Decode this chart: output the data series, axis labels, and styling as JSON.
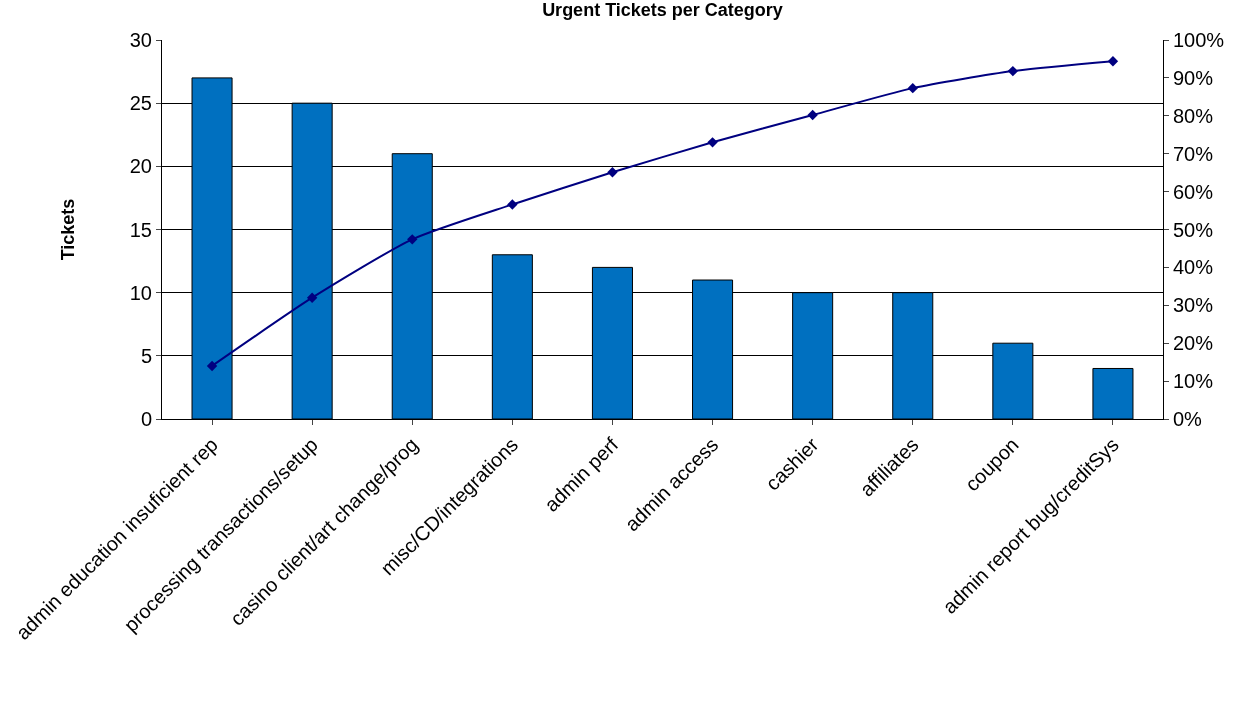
{
  "chart_data": {
    "type": "bar",
    "title": "Urgent Tickets per Category",
    "ylabel": "Tickets",
    "categories": [
      "admin education insuficient rep",
      "processing transactions/setup",
      "casino client/art change/prog",
      "misc/CD/integrations",
      "admin perf",
      "admin access",
      "cashier",
      "affiliates",
      "coupon",
      "admin report bug/creditSys"
    ],
    "series": [
      {
        "color": "#0070c0",
        "values": [
          27,
          25,
          21,
          13,
          12,
          11,
          10,
          10,
          6,
          4
        ]
      },
      {
        "type": "line",
        "axis": "y2",
        "color": "#000080",
        "marker": "diamond",
        "line_style": "solid",
        "values": [
          14.0,
          32.0,
          47.4,
          56.6,
          65.1,
          73.0,
          80.2,
          87.3,
          91.8,
          94.4
        ]
      }
    ],
    "ylim": [
      0,
      30
    ],
    "yticks": [
      0,
      5,
      10,
      15,
      20,
      25,
      30
    ],
    "y2lim": [
      0,
      100
    ],
    "y2ticks": [
      {
        "value": 0,
        "label": "0%"
      },
      {
        "value": 10,
        "label": "10%"
      },
      {
        "value": 20,
        "label": "20%"
      },
      {
        "value": 30,
        "label": "30%"
      },
      {
        "value": 40,
        "label": "40%"
      },
      {
        "value": 50,
        "label": "50%"
      },
      {
        "value": 60,
        "label": "60%"
      },
      {
        "value": 70,
        "label": "70%"
      },
      {
        "value": 80,
        "label": "80%"
      },
      {
        "value": 90,
        "label": "90%"
      },
      {
        "value": 100,
        "label": "100%"
      }
    ],
    "grid": "y"
  }
}
